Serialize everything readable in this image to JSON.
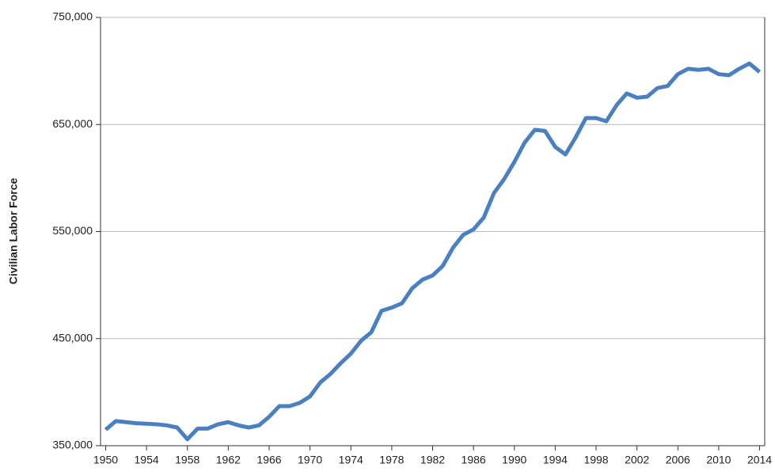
{
  "chart_data": {
    "type": "line",
    "y_label": "Civilian Labor Force",
    "x": [
      1950,
      1951,
      1952,
      1953,
      1954,
      1955,
      1956,
      1957,
      1958,
      1959,
      1960,
      1961,
      1962,
      1963,
      1964,
      1965,
      1966,
      1967,
      1968,
      1969,
      1970,
      1971,
      1972,
      1973,
      1974,
      1975,
      1976,
      1977,
      1978,
      1979,
      1980,
      1981,
      1982,
      1983,
      1984,
      1985,
      1986,
      1987,
      1988,
      1989,
      1990,
      1991,
      1992,
      1993,
      1994,
      1995,
      1996,
      1997,
      1998,
      1999,
      2000,
      2001,
      2002,
      2003,
      2004,
      2005,
      2006,
      2007,
      2008,
      2009,
      2010,
      2011,
      2012,
      2013,
      2014
    ],
    "series": [
      {
        "color": "#4a7fc1",
        "values": [
          365000,
          373000,
          372000,
          371000,
          370500,
          370000,
          369000,
          367000,
          356000,
          366000,
          366000,
          370000,
          372000,
          369000,
          367000,
          369000,
          377000,
          387000,
          387000,
          390000,
          396000,
          409000,
          417000,
          427000,
          436000,
          448000,
          456000,
          476000,
          479000,
          483000,
          497000,
          505000,
          509000,
          518000,
          535000,
          547000,
          552000,
          563000,
          586000,
          599000,
          615000,
          633000,
          645000,
          644000,
          629000,
          622000,
          638000,
          656000,
          656000,
          653000,
          668000,
          679000,
          675000,
          676000,
          684000,
          686000,
          697000,
          702000,
          701000,
          702000,
          697000,
          696000,
          702000,
          707000,
          699000
        ]
      }
    ],
    "xlim": [
      1949.5,
      2014.5
    ],
    "xticks": [
      1950,
      1954,
      1958,
      1962,
      1966,
      1970,
      1974,
      1978,
      1982,
      1986,
      1990,
      1994,
      1998,
      2002,
      2006,
      2010,
      2014
    ],
    "ylim": [
      350000,
      750000
    ],
    "yticks": [
      {
        "value": 350000,
        "label": "350,000"
      },
      {
        "value": 450000,
        "label": "450,000"
      },
      {
        "value": 550000,
        "label": "550,000"
      },
      {
        "value": 650000,
        "label": "650,000"
      },
      {
        "value": 750000,
        "label": "750,000"
      }
    ],
    "grid": true
  }
}
